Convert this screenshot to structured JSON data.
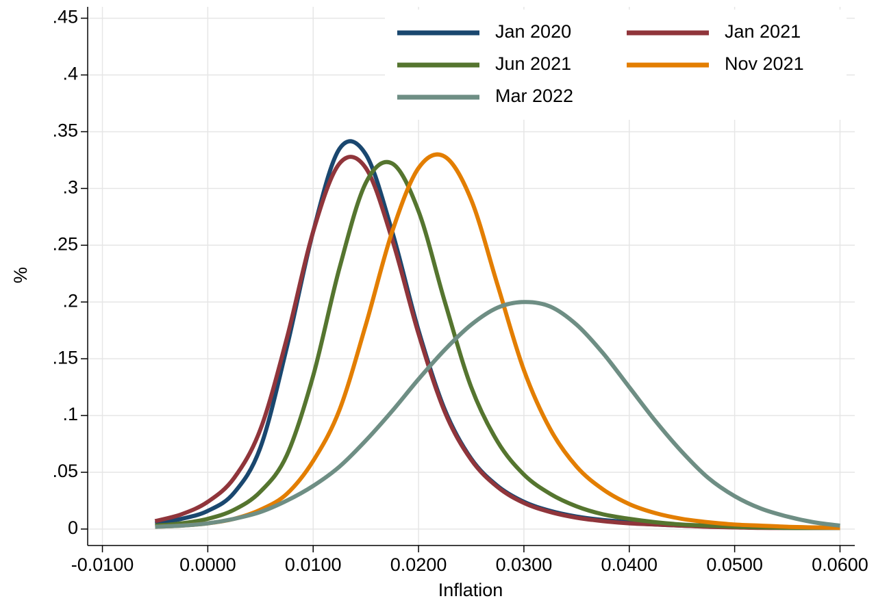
{
  "chart_data": {
    "type": "line",
    "xlabel": "Inflation",
    "ylabel": "%",
    "x": [
      -0.005,
      -0.0025,
      0,
      0.0025,
      0.005,
      0.0075,
      0.01,
      0.0125,
      0.015,
      0.0175,
      0.02,
      0.0225,
      0.025,
      0.0275,
      0.03,
      0.0325,
      0.035,
      0.0375,
      0.04,
      0.0425,
      0.045,
      0.0475,
      0.05,
      0.0525,
      0.055,
      0.0575,
      0.06
    ],
    "series": [
      {
        "name": "Jan 2020",
        "color": "#1a476f",
        "values": [
          0.005,
          0.009,
          0.016,
          0.032,
          0.072,
          0.16,
          0.262,
          0.335,
          0.33,
          0.262,
          0.175,
          0.105,
          0.062,
          0.038,
          0.024,
          0.016,
          0.011,
          0.008,
          0.006,
          0.004,
          0.003,
          0.0025,
          0.002,
          0.0015,
          0.001,
          0.001,
          0.001
        ]
      },
      {
        "name": "Jan 2021",
        "color": "#90353b",
        "values": [
          0.007,
          0.013,
          0.024,
          0.045,
          0.088,
          0.168,
          0.262,
          0.322,
          0.318,
          0.255,
          0.172,
          0.103,
          0.061,
          0.037,
          0.023,
          0.015,
          0.01,
          0.007,
          0.005,
          0.004,
          0.003,
          0.002,
          0.0015,
          0.001,
          0.001,
          0.001,
          0.001
        ]
      },
      {
        "name": "Jun 2021",
        "color": "#55752f",
        "values": [
          0.003,
          0.005,
          0.009,
          0.017,
          0.033,
          0.065,
          0.135,
          0.23,
          0.305,
          0.322,
          0.28,
          0.2,
          0.125,
          0.077,
          0.048,
          0.031,
          0.02,
          0.013,
          0.009,
          0.006,
          0.004,
          0.003,
          0.002,
          0.0015,
          0.001,
          0.001,
          0.001
        ]
      },
      {
        "name": "Nov 2021",
        "color": "#e37e00",
        "values": [
          0.002,
          0.003,
          0.005,
          0.009,
          0.017,
          0.031,
          0.06,
          0.105,
          0.18,
          0.262,
          0.318,
          0.328,
          0.29,
          0.215,
          0.14,
          0.088,
          0.055,
          0.035,
          0.022,
          0.014,
          0.009,
          0.006,
          0.004,
          0.003,
          0.002,
          0.0015,
          0.001
        ]
      },
      {
        "name": "Mar 2022",
        "color": "#6e8e84",
        "values": [
          0.002,
          0.003,
          0.005,
          0.009,
          0.015,
          0.025,
          0.038,
          0.055,
          0.078,
          0.104,
          0.132,
          0.158,
          0.18,
          0.195,
          0.2,
          0.196,
          0.18,
          0.155,
          0.125,
          0.095,
          0.068,
          0.045,
          0.029,
          0.018,
          0.011,
          0.006,
          0.003
        ]
      }
    ],
    "xlim": [
      -0.0114,
      0.0614
    ],
    "xticks": [
      {
        "value": -0.01,
        "label": "-0.0100"
      },
      {
        "value": 0,
        "label": "0.0000"
      },
      {
        "value": 0.01,
        "label": "0.0100"
      },
      {
        "value": 0.02,
        "label": "0.0200"
      },
      {
        "value": 0.03,
        "label": "0.0300"
      },
      {
        "value": 0.04,
        "label": "0.0400"
      },
      {
        "value": 0.05,
        "label": "0.0500"
      },
      {
        "value": 0.06,
        "label": "0.0600"
      }
    ],
    "ylim": [
      -0.0145,
      0.46
    ],
    "yticks": [
      0,
      {
        "value": 0.05,
        "label": ".05"
      },
      {
        "value": 0.1,
        "label": ".1"
      },
      {
        "value": 0.15,
        "label": ".15"
      },
      {
        "value": 0.2,
        "label": ".2"
      },
      {
        "value": 0.25,
        "label": ".25"
      },
      {
        "value": 0.3,
        "label": ".3"
      },
      {
        "value": 0.35,
        "label": ".35"
      },
      {
        "value": 0.4,
        "label": ".4"
      },
      {
        "value": 0.45,
        "label": ".45"
      }
    ],
    "grid": true,
    "legend": "top-right"
  }
}
